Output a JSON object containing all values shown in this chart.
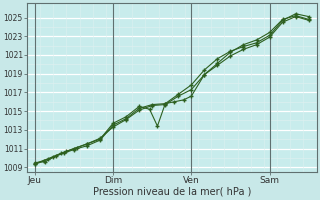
{
  "title": "",
  "xlabel": "Pression niveau de la mer( hPa )",
  "ylabel": "",
  "bg_color": "#c8e8e8",
  "plot_bg_color": "#c8ecec",
  "grid_major_color": "#b0cccc",
  "grid_white_color": "#e8f8f8",
  "vline_color": "#607070",
  "line_color": "#2d6020",
  "ylim": [
    1008.5,
    1026.5
  ],
  "xlim": [
    -0.3,
    10.8
  ],
  "yticks": [
    1009,
    1011,
    1013,
    1015,
    1017,
    1019,
    1021,
    1023,
    1025
  ],
  "xtick_labels": [
    "Jeu",
    "Dim",
    "Ven",
    "Sam"
  ],
  "xtick_positions": [
    0.0,
    3.0,
    6.0,
    9.0
  ],
  "series1_x": [
    0.0,
    0.35,
    0.7,
    1.1,
    1.5,
    2.0,
    2.5,
    3.0,
    3.5,
    4.0,
    4.5,
    5.0,
    5.35,
    5.7,
    6.0,
    6.5,
    7.0,
    7.5,
    8.0,
    8.5,
    9.0,
    9.5,
    10.0,
    10.5
  ],
  "series1_y": [
    1009.3,
    1009.7,
    1010.1,
    1010.5,
    1010.9,
    1011.3,
    1011.9,
    1013.5,
    1014.2,
    1015.3,
    1015.7,
    1015.8,
    1016.0,
    1016.2,
    1016.6,
    1018.9,
    1020.1,
    1021.3,
    1022.1,
    1022.6,
    1023.4,
    1024.8,
    1025.2,
    1024.8
  ],
  "series2_x": [
    0.0,
    0.4,
    0.8,
    1.2,
    1.6,
    2.0,
    2.5,
    3.0,
    3.5,
    4.0,
    4.4,
    4.7,
    5.0,
    5.5,
    6.0,
    6.5,
    7.0,
    7.5,
    8.0,
    8.5,
    9.0,
    9.5,
    10.0,
    10.5
  ],
  "series2_y": [
    1009.5,
    1009.6,
    1010.2,
    1010.7,
    1011.1,
    1011.5,
    1012.0,
    1013.7,
    1014.4,
    1015.5,
    1015.2,
    1013.4,
    1015.8,
    1016.8,
    1017.8,
    1019.4,
    1020.6,
    1021.4,
    1021.9,
    1022.3,
    1023.1,
    1024.7,
    1025.4,
    1025.1
  ],
  "series3_x": [
    0.0,
    0.5,
    1.0,
    1.5,
    2.0,
    2.5,
    3.0,
    3.5,
    4.0,
    4.5,
    5.0,
    5.5,
    6.0,
    6.5,
    7.0,
    7.5,
    8.0,
    8.5,
    9.0,
    9.5,
    10.0,
    10.5
  ],
  "series3_y": [
    1009.4,
    1009.9,
    1010.5,
    1011.0,
    1011.5,
    1012.1,
    1013.3,
    1014.1,
    1015.1,
    1015.6,
    1015.7,
    1016.6,
    1017.3,
    1018.9,
    1019.9,
    1020.9,
    1021.6,
    1022.1,
    1022.9,
    1024.5,
    1025.1,
    1024.7
  ],
  "major_vlines": [
    0.0,
    3.0,
    6.0,
    9.0
  ],
  "hlines_white": [
    1009,
    1011,
    1013,
    1015,
    1017,
    1019,
    1021,
    1023,
    1025
  ],
  "minor_hlines": [
    1010,
    1012,
    1014,
    1016,
    1018,
    1020,
    1022,
    1024
  ]
}
